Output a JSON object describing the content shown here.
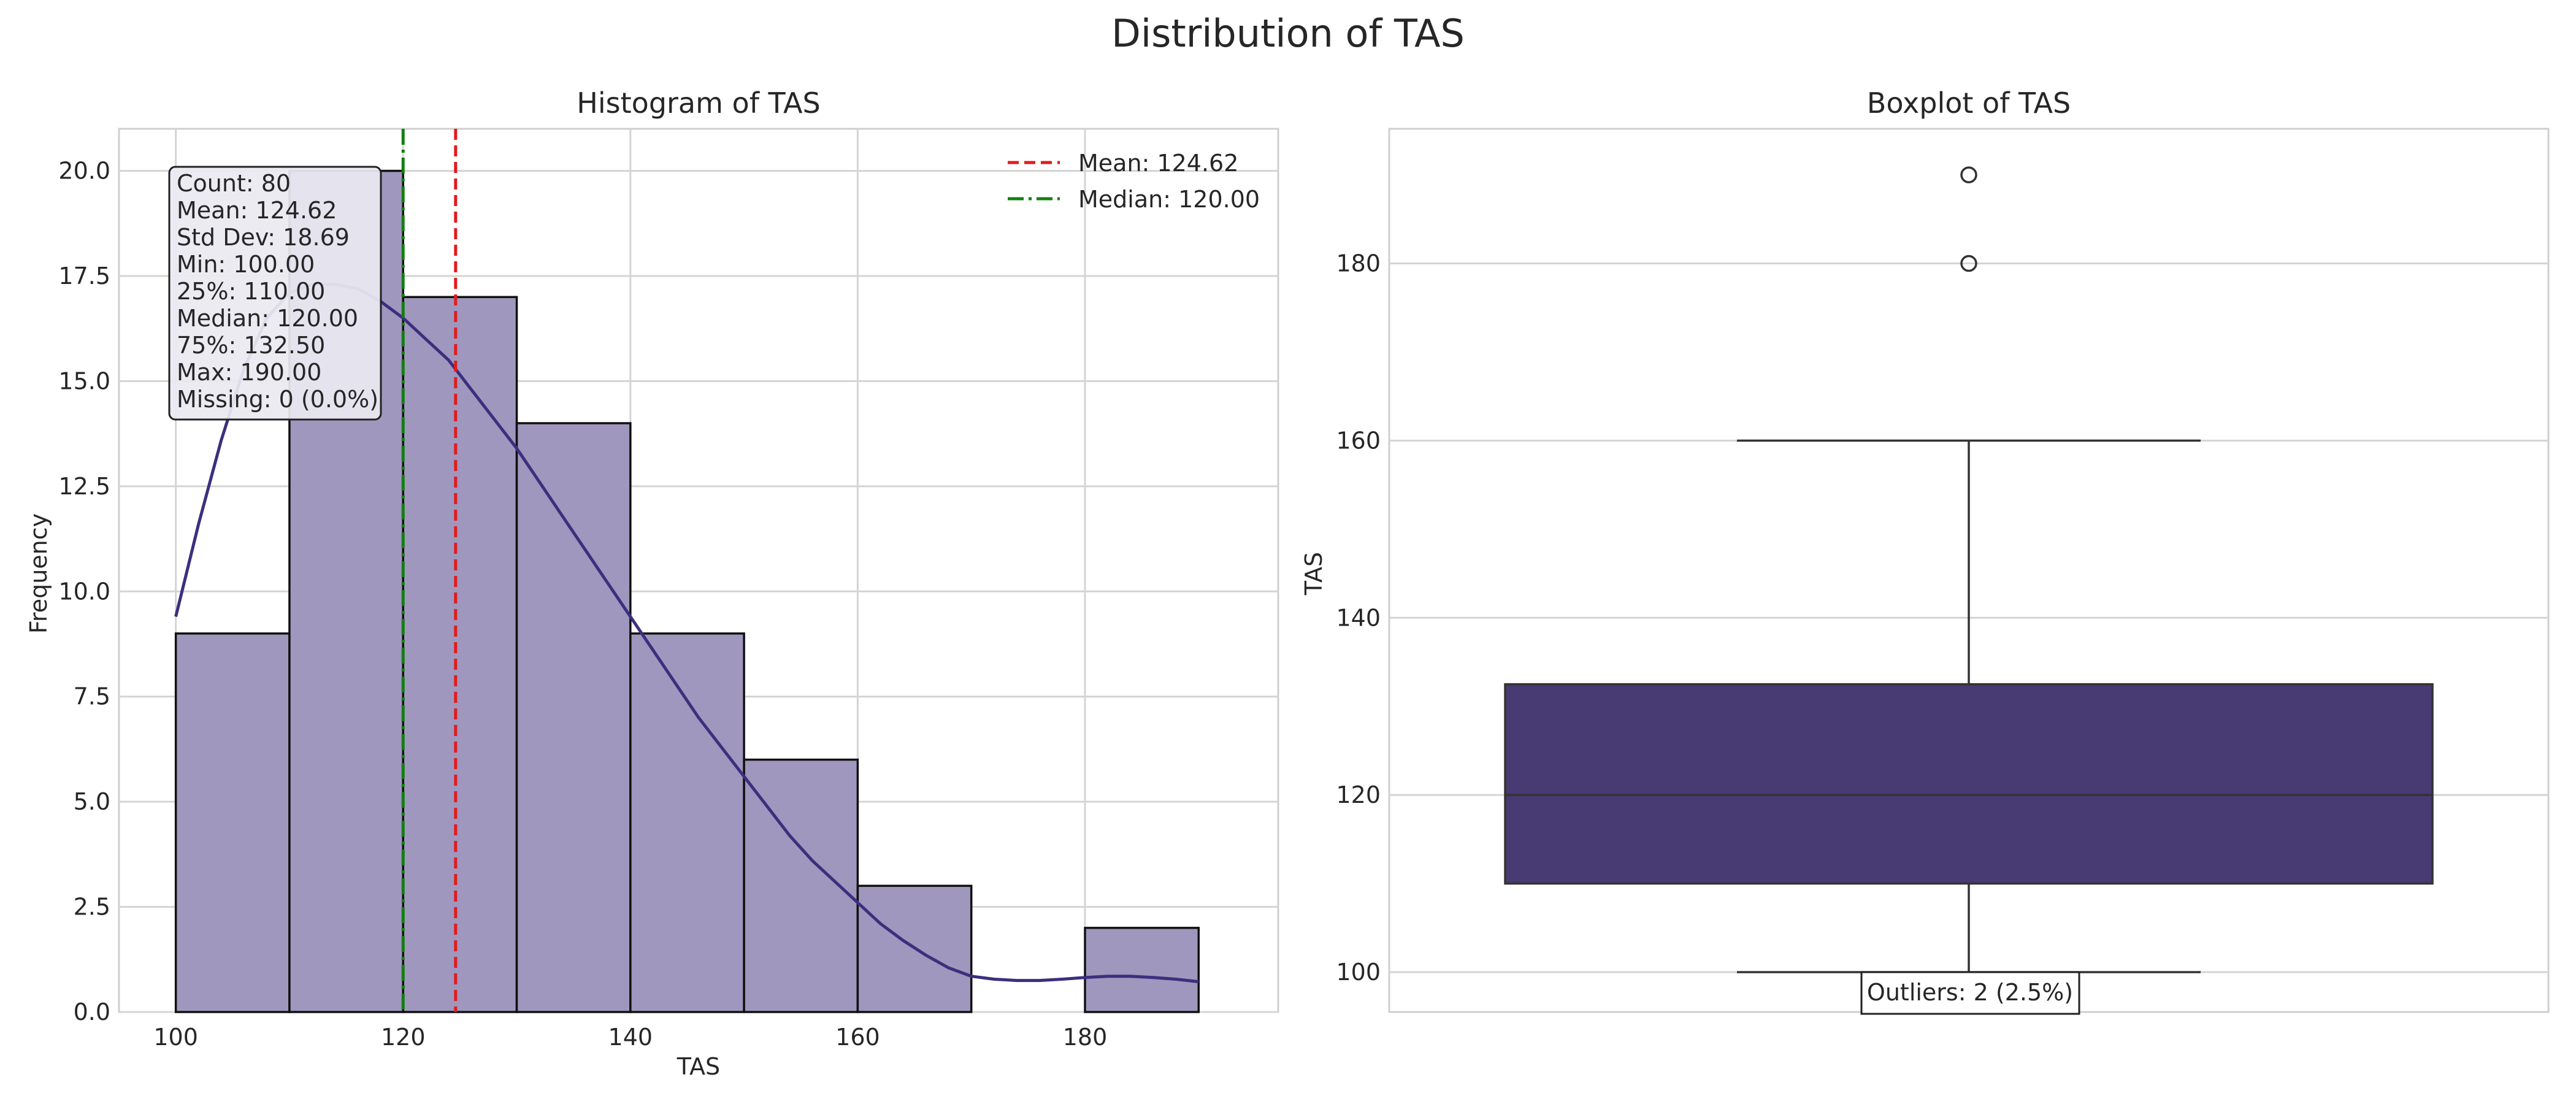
{
  "figure": {
    "title": "Distribution of TAS"
  },
  "chart_data": [
    {
      "type": "bar",
      "title": "Histogram of TAS",
      "xlabel": "TAS",
      "ylabel": "Frequency",
      "xlim": [
        95,
        197
      ],
      "ylim": [
        0,
        21
      ],
      "xticks": [
        100,
        120,
        140,
        160,
        180
      ],
      "yticks": [
        0.0,
        2.5,
        5.0,
        7.5,
        10.0,
        12.5,
        15.0,
        17.5,
        20.0
      ],
      "bin_edges": [
        100,
        110,
        120,
        130,
        140,
        150,
        160,
        170,
        180,
        190
      ],
      "counts": [
        9,
        20,
        17,
        14,
        9,
        6,
        3,
        0,
        2
      ],
      "bar_color": "#9f97bd",
      "kde": {
        "color": "#3c2f7e",
        "x": [
          100,
          102,
          104,
          106,
          108,
          110,
          112,
          114,
          116,
          118,
          120,
          122,
          124,
          126,
          128,
          130,
          132,
          134,
          136,
          138,
          140,
          142,
          144,
          146,
          148,
          150,
          152,
          154,
          156,
          158,
          160,
          162,
          164,
          166,
          168,
          170,
          172,
          174,
          176,
          178,
          180,
          182,
          184,
          186,
          188,
          190
        ],
        "y": [
          9.4,
          11.6,
          13.6,
          15.3,
          16.5,
          17.1,
          17.3,
          17.3,
          17.2,
          16.9,
          16.5,
          16.0,
          15.5,
          14.8,
          14.1,
          13.4,
          12.6,
          11.8,
          11.0,
          10.2,
          9.4,
          8.6,
          7.8,
          7.0,
          6.3,
          5.6,
          4.9,
          4.2,
          3.6,
          3.1,
          2.6,
          2.1,
          1.7,
          1.35,
          1.05,
          0.85,
          0.78,
          0.75,
          0.75,
          0.78,
          0.82,
          0.85,
          0.85,
          0.82,
          0.78,
          0.72
        ]
      },
      "mean": {
        "value": 124.62,
        "color": "#e41a1c",
        "label": "Mean: 124.62"
      },
      "median": {
        "value": 120.0,
        "color": "#108010",
        "label": "Median: 120.00"
      },
      "legend": {
        "location": "top-right"
      },
      "stats_box": [
        "Count: 80",
        "Mean: 124.62",
        "Std Dev: 18.69",
        "Min: 100.00",
        "25%: 110.00",
        "Median: 120.00",
        "75%: 132.50",
        "Max: 190.00",
        "Missing: 0 (0.0%)"
      ],
      "grid": true
    },
    {
      "type": "box",
      "title": "Boxplot of TAS",
      "xlabel": "",
      "ylabel": "TAS",
      "ylim": [
        95.5,
        195.2
      ],
      "yticks": [
        100,
        120,
        140,
        160,
        180
      ],
      "box": {
        "whisker_low": 100,
        "q1": 110,
        "median": 120,
        "q3": 132.5,
        "whisker_high": 160
      },
      "outliers": [
        180,
        190
      ],
      "box_color": "#483a72",
      "annotation": "Outliers: 2 (2.5%)",
      "grid": true
    }
  ]
}
